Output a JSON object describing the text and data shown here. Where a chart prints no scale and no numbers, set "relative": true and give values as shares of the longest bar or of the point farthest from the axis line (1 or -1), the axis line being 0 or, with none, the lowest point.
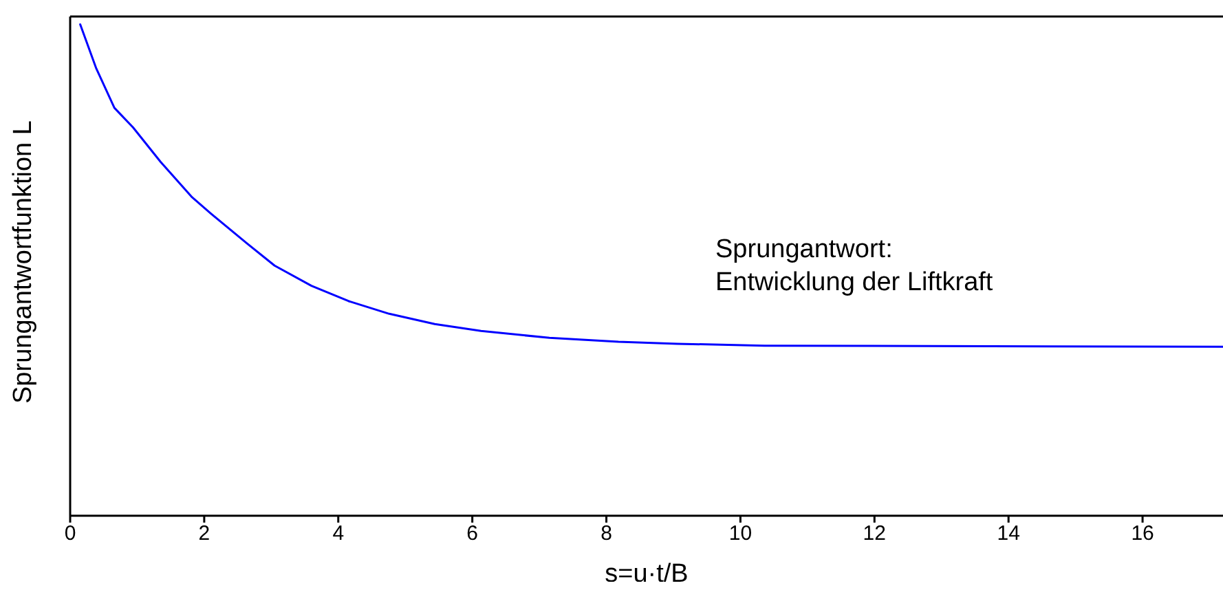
{
  "chart_data": {
    "type": "line",
    "relative": true,
    "xlabel": "s=u·t/B",
    "ylabel": "Sprungantwortfunktion  L",
    "annotations": [
      "Sprungantwort:\nEntwicklung der Liftkraft"
    ],
    "xlim": [
      0,
      17.2
    ],
    "xticks": [
      0,
      2,
      4,
      6,
      8,
      10,
      12,
      14,
      16
    ],
    "marker": "none",
    "line_style": "solid",
    "series": [
      {
        "color": "#0000ff",
        "x": [
          0.15,
          0.39,
          0.66,
          0.94,
          1.35,
          1.82,
          2.1,
          2.64,
          3.05,
          3.6,
          4.15,
          4.76,
          5.44,
          6.13,
          7.15,
          8.18,
          9.06,
          10.36,
          17.2
        ],
        "values": [
          1.0,
          0.91,
          0.83,
          0.79,
          0.72,
          0.648,
          0.615,
          0.554,
          0.509,
          0.468,
          0.437,
          0.411,
          0.39,
          0.376,
          0.362,
          0.354,
          0.35,
          0.346,
          0.344
        ]
      }
    ]
  }
}
